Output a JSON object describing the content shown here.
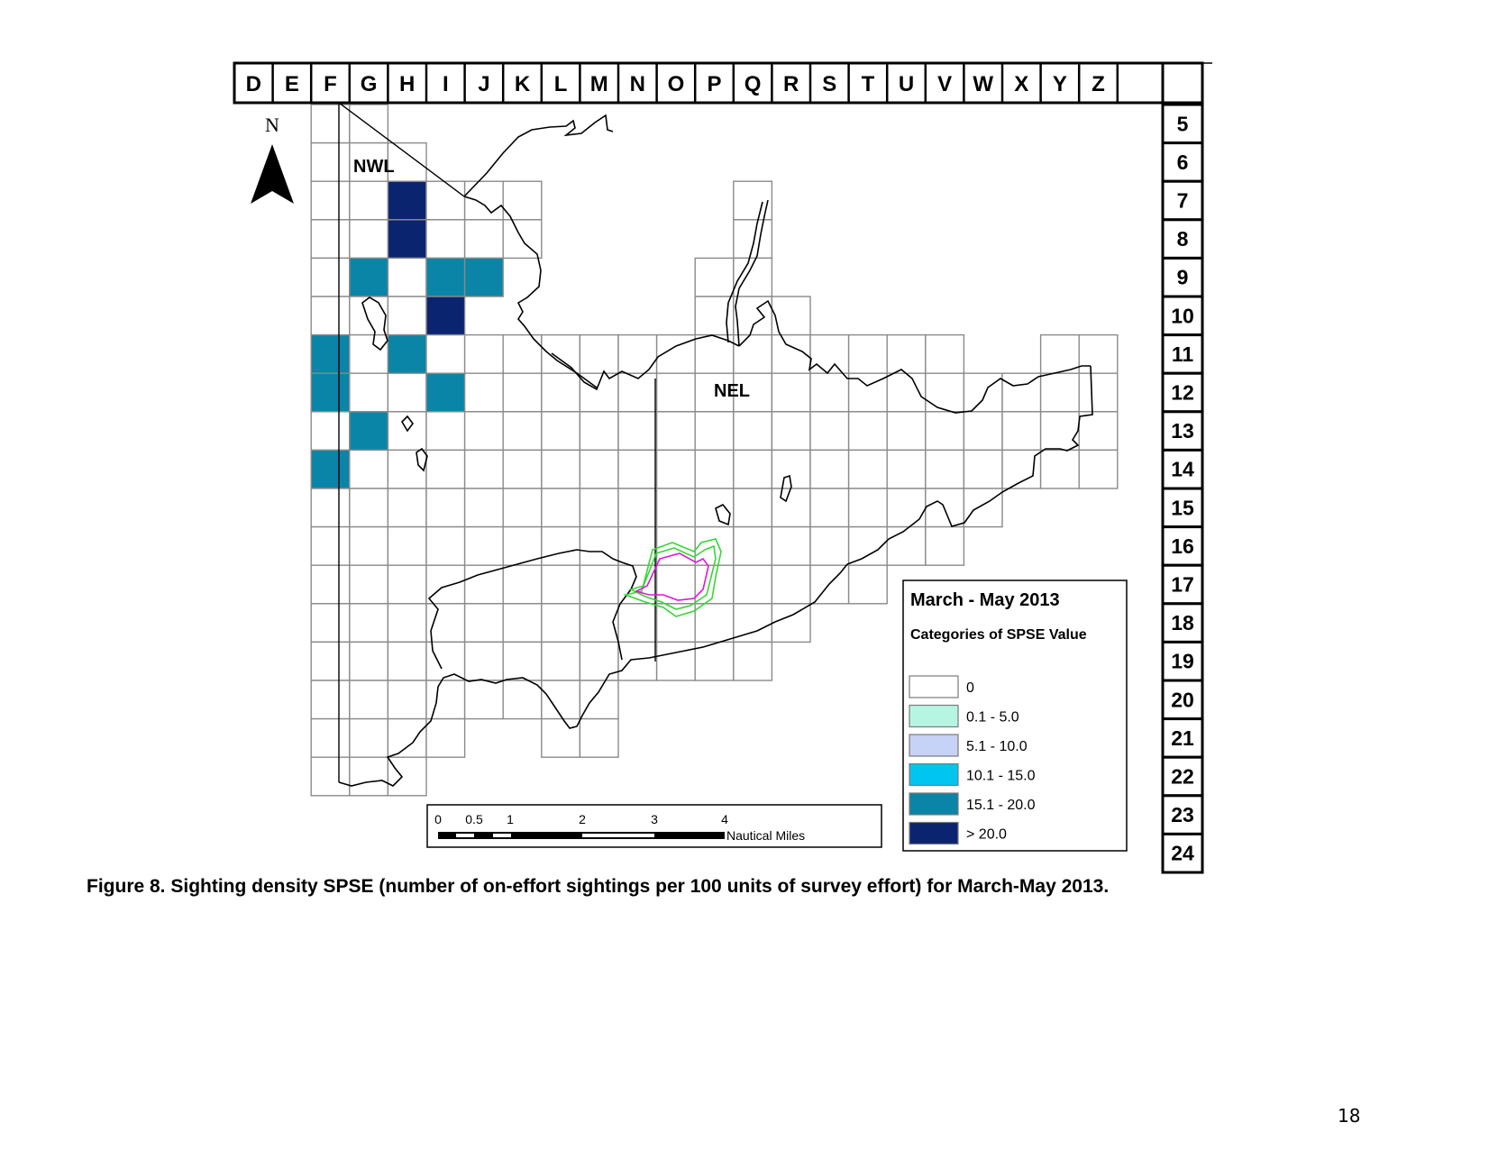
{
  "map": {
    "column_labels": [
      "D",
      "E",
      "F",
      "G",
      "H",
      "I",
      "J",
      "K",
      "L",
      "M",
      "N",
      "O",
      "P",
      "Q",
      "R",
      "S",
      "T",
      "U",
      "V",
      "W",
      "X",
      "Y",
      "Z"
    ],
    "row_labels": [
      "5",
      "6",
      "7",
      "8",
      "9",
      "10",
      "11",
      "12",
      "13",
      "14",
      "15",
      "16",
      "17",
      "18",
      "19",
      "20",
      "21",
      "22",
      "23",
      "24"
    ],
    "north_label": "N",
    "region_labels": {
      "nwl": "NWL",
      "nel": "NEL"
    },
    "cells": [
      {
        "col": "H",
        "row": "7",
        "category": "> 20.0"
      },
      {
        "col": "H",
        "row": "8",
        "category": "> 20.0"
      },
      {
        "col": "G",
        "row": "9",
        "category": "15.1 - 20.0"
      },
      {
        "col": "I",
        "row": "9",
        "category": "15.1 - 20.0"
      },
      {
        "col": "J",
        "row": "9",
        "category": "15.1 - 20.0"
      },
      {
        "col": "I",
        "row": "10",
        "category": "> 20.0"
      },
      {
        "col": "F",
        "row": "11",
        "category": "15.1 - 20.0"
      },
      {
        "col": "H",
        "row": "11",
        "category": "15.1 - 20.0"
      },
      {
        "col": "F",
        "row": "12",
        "category": "15.1 - 20.0"
      },
      {
        "col": "I",
        "row": "12",
        "category": "15.1 - 20.0"
      },
      {
        "col": "G",
        "row": "13",
        "category": "15.1 - 20.0"
      },
      {
        "col": "F",
        "row": "14",
        "category": "15.1 - 20.0"
      }
    ]
  },
  "legend": {
    "title": "March - May 2013",
    "subtitle": "Categories of SPSE Value",
    "items": [
      {
        "label": "0",
        "color": "#ffffff"
      },
      {
        "label": "0.1 - 5.0",
        "color": "#b7f5e3"
      },
      {
        "label": "5.1 - 10.0",
        "color": "#c6d2f6"
      },
      {
        "label": "10.1 - 15.0",
        "color": "#00c5f0"
      },
      {
        "label": "15.1 - 20.0",
        "color": "#0a85a8"
      },
      {
        "label": "> 20.0",
        "color": "#0a2470"
      }
    ]
  },
  "scale_bar": {
    "ticks": [
      "0",
      "0.5",
      "1",
      "2",
      "3",
      "4"
    ],
    "unit": "Nautical Miles"
  },
  "caption": "Figure 8. Sighting density SPSE (number of on-effort sightings per 100 units of survey effort) for March-May 2013.",
  "page_number": "18"
}
